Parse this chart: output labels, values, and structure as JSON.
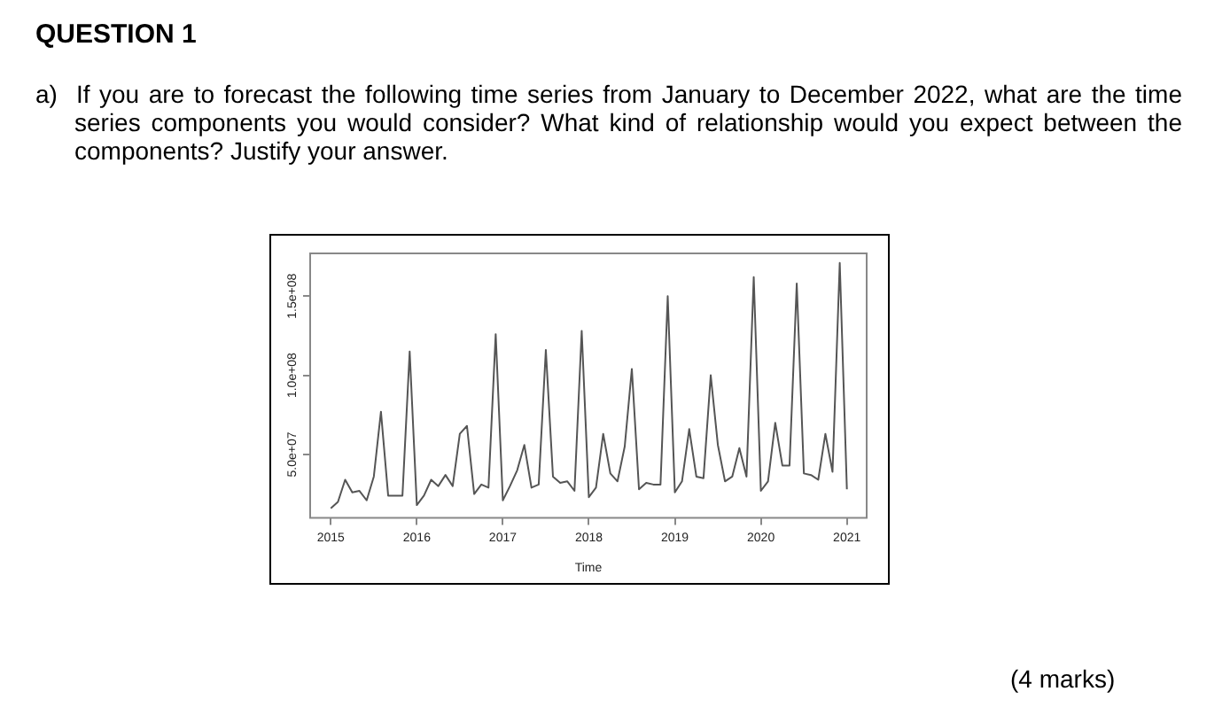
{
  "chart_data": {
    "type": "line",
    "title": "QUESTION 1",
    "subtitle": "a)  If you are to forecast the following time series from January to December 2022, what are the time series components you would consider? What kind of relationship would you expect between the components? Justify your answer.",
    "xlabel": "Time",
    "annotations": [
      "(4 marks)"
    ],
    "x": [
      2015,
      2015.083,
      2015.167,
      2015.25,
      2015.333,
      2015.417,
      2015.5,
      2015.583,
      2015.667,
      2015.75,
      2015.833,
      2015.917,
      2016,
      2016.083,
      2016.167,
      2016.25,
      2016.333,
      2016.417,
      2016.5,
      2016.583,
      2016.667,
      2016.75,
      2016.833,
      2016.917,
      2017,
      2017.083,
      2017.167,
      2017.25,
      2017.333,
      2017.417,
      2017.5,
      2017.583,
      2017.667,
      2017.75,
      2017.833,
      2017.917,
      2018,
      2018.083,
      2018.167,
      2018.25,
      2018.333,
      2018.417,
      2018.5,
      2018.583,
      2018.667,
      2018.75,
      2018.833,
      2018.917,
      2019,
      2019.083,
      2019.167,
      2019.25,
      2019.333,
      2019.417,
      2019.5,
      2019.583,
      2019.667,
      2019.75,
      2019.833,
      2019.917,
      2020,
      2020.083,
      2020.167,
      2020.25,
      2020.333,
      2020.417,
      2020.5,
      2020.583,
      2020.667,
      2020.75,
      2020.833,
      2020.917,
      2021
    ],
    "series": [
      {
        "color": "#555555",
        "values": [
          16000000,
          20000000,
          34000000,
          26000000,
          27000000,
          21000000,
          36000000,
          77000000,
          24000000,
          24000000,
          24000000,
          115000000,
          18000000,
          24000000,
          34000000,
          30000000,
          37000000,
          30000000,
          63000000,
          68000000,
          25000000,
          31000000,
          29000000,
          126000000,
          21000000,
          30000000,
          40000000,
          56000000,
          29000000,
          31000000,
          116000000,
          36000000,
          32000000,
          33000000,
          27000000,
          128000000,
          23000000,
          29000000,
          63000000,
          38000000,
          33000000,
          55000000,
          104000000,
          28000000,
          32000000,
          31000000,
          31000000,
          150000000,
          26000000,
          33000000,
          66000000,
          36000000,
          35000000,
          100000000,
          56000000,
          33000000,
          36000000,
          54000000,
          36000000,
          162000000,
          27000000,
          33000000,
          70000000,
          43000000,
          43000000,
          158000000,
          38000000,
          37000000,
          34000000,
          63000000,
          39000000,
          171000000,
          28000000
        ]
      }
    ],
    "xlim": [
      2014.76,
      2021.23
    ],
    "xticks": [
      2015,
      2016,
      2017,
      2018,
      2019,
      2020,
      2021
    ],
    "ylim": [
      10000000,
      177000000
    ],
    "yticks": [
      {
        "value": 50000000,
        "label": "5.0e+07"
      },
      {
        "value": 100000000,
        "label": "1.0e+08"
      },
      {
        "value": 150000000,
        "label": "1.5e+08"
      }
    ],
    "grid": false,
    "legend": false,
    "marker": "none",
    "line_style": "solid"
  }
}
